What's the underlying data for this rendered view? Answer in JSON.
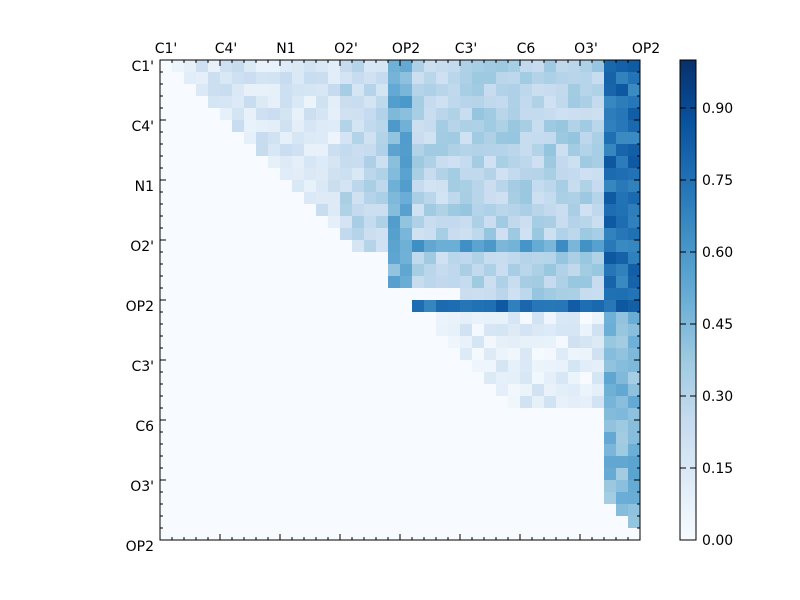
{
  "chart_data": {
    "type": "heatmap",
    "title": "",
    "xlabel": "",
    "ylabel": "",
    "rows": 40,
    "cols": 40,
    "x_tick_labels": [
      "C1'",
      "C4'",
      "N1",
      "O2'",
      "OP2",
      "C3'",
      "C6",
      "O3'",
      "OP2"
    ],
    "y_tick_labels": [
      "C1'",
      "C4'",
      "N1",
      "O2'",
      "OP2",
      "C3'",
      "C6",
      "O3'",
      "OP2"
    ],
    "tick_every": 5,
    "colormap": "Blues",
    "color_low": "#f7fbff",
    "color_high": "#08306b",
    "colorbar": {
      "range": [
        0.0,
        1.0
      ],
      "tick_labels": [
        "0.00",
        "0.15",
        "0.30",
        "0.45",
        "0.60",
        "0.75",
        "0.90"
      ],
      "tick_values": [
        0.0,
        0.15,
        0.3,
        0.45,
        0.6,
        0.75,
        0.9
      ]
    },
    "grid": false,
    "matrix": "upper-triangular; values 0.00–1.00; lower triangle and diagonal ≈ 0",
    "block_values": [
      {
        "rows": [
          0,
          14
        ],
        "cols": [
          1,
          15
        ],
        "value": 0.15
      },
      {
        "rows": [
          0,
          16
        ],
        "cols": [
          15,
          19
        ],
        "value": 0.25
      },
      {
        "rows": [
          0,
          19
        ],
        "cols": [
          19,
          21
        ],
        "value": 0.5
      },
      {
        "rows": [
          0,
          19
        ],
        "cols": [
          21,
          25
        ],
        "value": 0.28
      },
      {
        "rows": [
          0,
          21
        ],
        "cols": [
          25,
          37
        ],
        "value": 0.3
      },
      {
        "rows": [
          0,
          21
        ],
        "cols": [
          37,
          40
        ],
        "value": 0.75
      },
      {
        "rows": [
          15,
          16
        ],
        "cols": [
          21,
          37
        ],
        "value": 0.55
      },
      {
        "rows": [
          20,
          21
        ],
        "cols": [
          21,
          37
        ],
        "value": 0.75
      },
      {
        "rows": [
          21,
          29
        ],
        "cols": [
          23,
          37
        ],
        "value": 0.1
      },
      {
        "rows": [
          21,
          40
        ],
        "cols": [
          37,
          40
        ],
        "value": 0.45
      }
    ]
  }
}
